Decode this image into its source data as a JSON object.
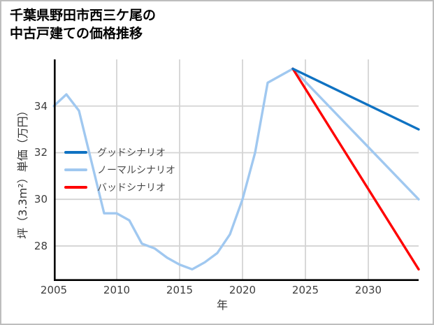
{
  "window": {
    "background": "#ffffff",
    "frame_border": "#bdbdbd"
  },
  "title_lines": [
    "千葉県野田市西三ケ尾の",
    "中古戸建ての価格推移"
  ],
  "chart_data": {
    "type": "line",
    "title": "千葉県野田市西三ケ尾の中古戸建ての価格推移",
    "xlabel": "年",
    "ylabel": "坪（3.3m²）単価（万円）",
    "xlim": [
      2005,
      2034
    ],
    "ylim": [
      26.5,
      36.0
    ],
    "x_ticks": [
      2005,
      2010,
      2015,
      2020,
      2025,
      2030
    ],
    "y_ticks": [
      28,
      30,
      32,
      34
    ],
    "grid": true,
    "grid_color": "#d4d4d4",
    "axis_color": "#000000",
    "legend_position": "center-left",
    "series": [
      {
        "name": "price-history",
        "color": "#a0c8f0",
        "width": 3.4,
        "x": [
          2005,
          2006,
          2007,
          2008,
          2009,
          2010,
          2011,
          2012,
          2013,
          2014,
          2015,
          2016,
          2017,
          2018,
          2019,
          2020,
          2021,
          2022,
          2023,
          2024
        ],
        "values": [
          34.0,
          34.5,
          33.8,
          31.6,
          29.4,
          29.4,
          29.1,
          28.1,
          27.9,
          27.5,
          27.2,
          27.0,
          27.3,
          27.7,
          28.5,
          30.0,
          32.0,
          35.0,
          35.3,
          35.6
        ]
      },
      {
        "name": "normal-scenario-forecast",
        "color": "#a0c8f0",
        "width": 3.4,
        "x": [
          2024,
          2034
        ],
        "values": [
          35.6,
          30.0
        ]
      },
      {
        "name": "bad-scenario-forecast",
        "color": "#ff0000",
        "width": 3.4,
        "x": [
          2024,
          2034
        ],
        "values": [
          35.6,
          27.0
        ]
      },
      {
        "name": "good-scenario-forecast",
        "color": "#0f72c2",
        "width": 3.4,
        "x": [
          2024,
          2034
        ],
        "values": [
          35.6,
          33.0
        ]
      }
    ],
    "legend": {
      "items": [
        {
          "label": "グッドシナリオ",
          "color": "#0f72c2"
        },
        {
          "label": "ノーマルシナリオ",
          "color": "#a0c8f0"
        },
        {
          "label": "バッドシナリオ",
          "color": "#ff0000"
        }
      ]
    }
  }
}
